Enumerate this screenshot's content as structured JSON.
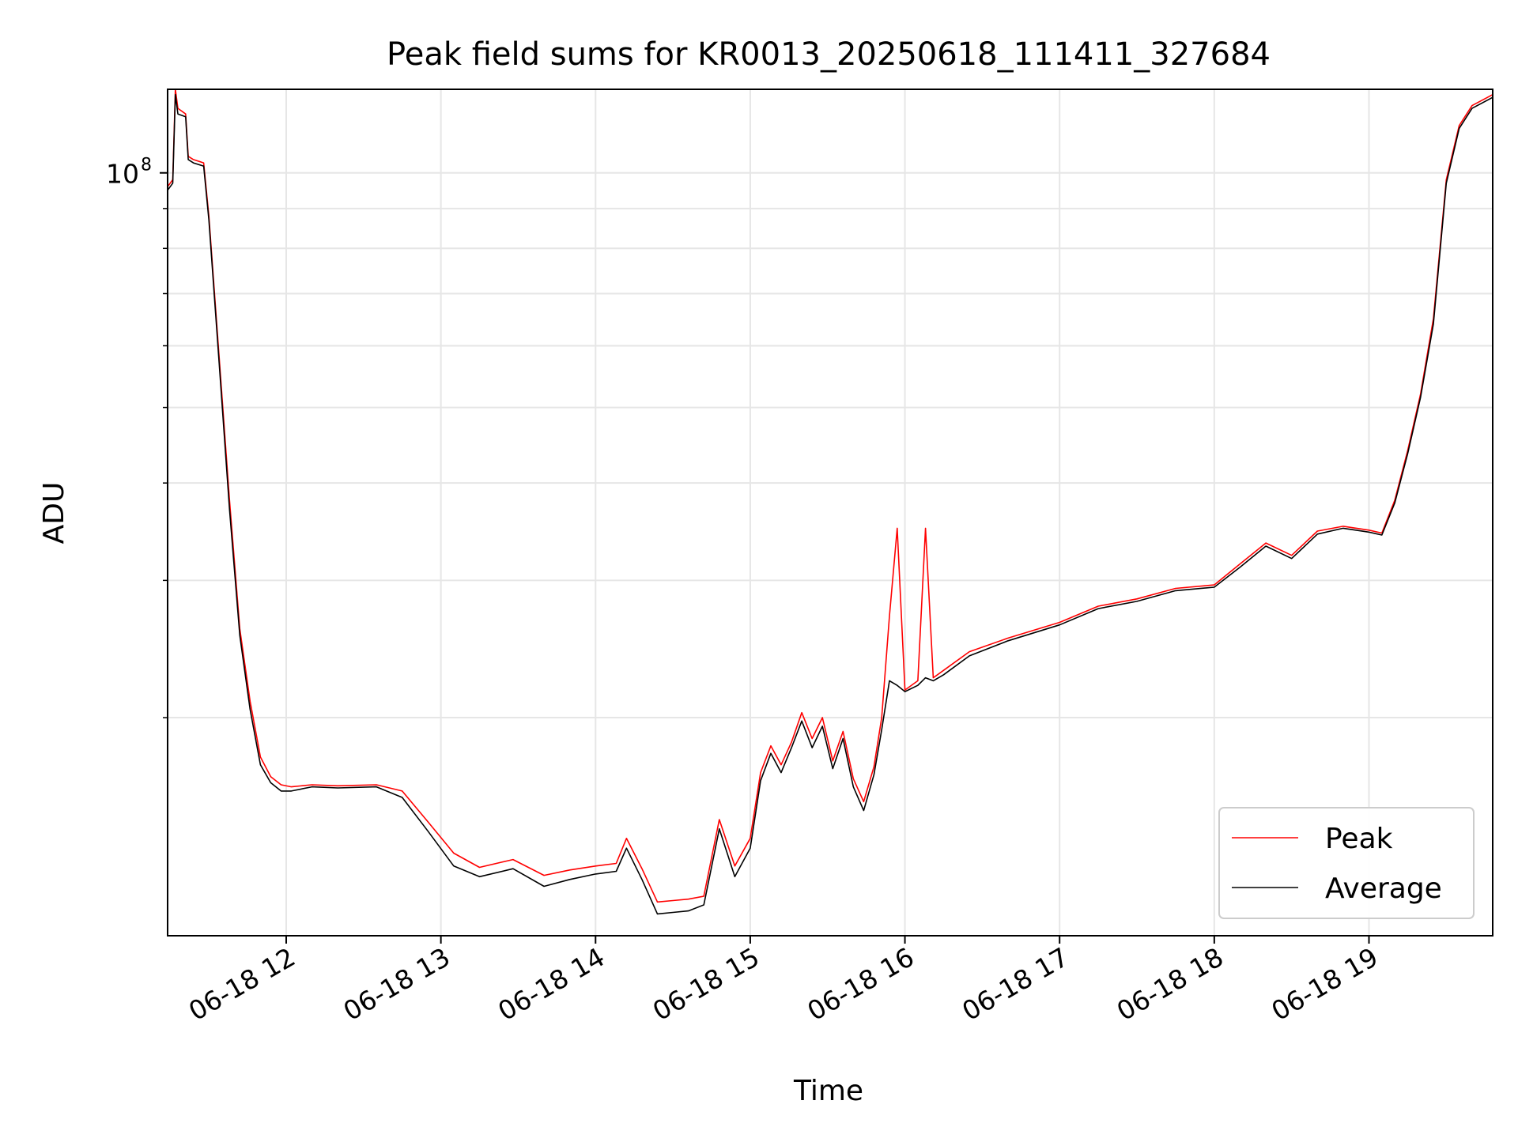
{
  "chart_data": {
    "type": "line",
    "title": "Peak field sums for KR0013_20250618_111411_327684",
    "xlabel": "Time",
    "ylabel": "ADU",
    "xscale": "time",
    "yscale": "log",
    "xlim": [
      "2025-06-18 11:14",
      "2025-06-18 19:48"
    ],
    "ylim": [
      10500000,
      128000000
    ],
    "xticks": [
      {
        "value": "2025-06-18 12:00",
        "label": "06-18 12"
      },
      {
        "value": "2025-06-18 13:00",
        "label": "06-18 13"
      },
      {
        "value": "2025-06-18 14:00",
        "label": "06-18 14"
      },
      {
        "value": "2025-06-18 15:00",
        "label": "06-18 15"
      },
      {
        "value": "2025-06-18 16:00",
        "label": "06-18 16"
      },
      {
        "value": "2025-06-18 17:00",
        "label": "06-18 17"
      },
      {
        "value": "2025-06-18 18:00",
        "label": "06-18 18"
      },
      {
        "value": "2025-06-18 19:00",
        "label": "06-18 19"
      }
    ],
    "yticks_major": [
      {
        "value": 100000000,
        "label_base": "10",
        "label_exp": "8"
      }
    ],
    "yticks_minor": [
      20000000,
      30000000,
      40000000,
      50000000,
      60000000,
      70000000,
      80000000,
      90000000
    ],
    "grid": true,
    "legend": {
      "position": "lower-right"
    },
    "series": [
      {
        "name": "Peak",
        "color": "#ff0000",
        "x": [
          "2025-06-18 11:14",
          "2025-06-18 11:16",
          "2025-06-18 11:17",
          "2025-06-18 11:18",
          "2025-06-18 11:21",
          "2025-06-18 11:22",
          "2025-06-18 11:24",
          "2025-06-18 11:28",
          "2025-06-18 11:30",
          "2025-06-18 11:34",
          "2025-06-18 11:38",
          "2025-06-18 11:42",
          "2025-06-18 11:46",
          "2025-06-18 11:50",
          "2025-06-18 11:54",
          "2025-06-18 11:58",
          "2025-06-18 12:02",
          "2025-06-18 12:10",
          "2025-06-18 12:20",
          "2025-06-18 12:35",
          "2025-06-18 12:45",
          "2025-06-18 12:55",
          "2025-06-18 13:05",
          "2025-06-18 13:15",
          "2025-06-18 13:28",
          "2025-06-18 13:40",
          "2025-06-18 13:50",
          "2025-06-18 14:00",
          "2025-06-18 14:08",
          "2025-06-18 14:12",
          "2025-06-18 14:18",
          "2025-06-18 14:24",
          "2025-06-18 14:30",
          "2025-06-18 14:36",
          "2025-06-18 14:42",
          "2025-06-18 14:48",
          "2025-06-18 14:54",
          "2025-06-18 15:00",
          "2025-06-18 15:04",
          "2025-06-18 15:08",
          "2025-06-18 15:12",
          "2025-06-18 15:16",
          "2025-06-18 15:20",
          "2025-06-18 15:24",
          "2025-06-18 15:28",
          "2025-06-18 15:32",
          "2025-06-18 15:36",
          "2025-06-18 15:40",
          "2025-06-18 15:44",
          "2025-06-18 15:48",
          "2025-06-18 15:51",
          "2025-06-18 15:54",
          "2025-06-18 15:57",
          "2025-06-18 16:00",
          "2025-06-18 16:05",
          "2025-06-18 16:08",
          "2025-06-18 16:11",
          "2025-06-18 16:15",
          "2025-06-18 16:25",
          "2025-06-18 16:40",
          "2025-06-18 17:00",
          "2025-06-18 17:15",
          "2025-06-18 17:30",
          "2025-06-18 17:45",
          "2025-06-18 18:00",
          "2025-06-18 18:10",
          "2025-06-18 18:20",
          "2025-06-18 18:30",
          "2025-06-18 18:40",
          "2025-06-18 18:50",
          "2025-06-18 19:00",
          "2025-06-18 19:05",
          "2025-06-18 19:10",
          "2025-06-18 19:15",
          "2025-06-18 19:20",
          "2025-06-18 19:25",
          "2025-06-18 19:30",
          "2025-06-18 19:35",
          "2025-06-18 19:40",
          "2025-06-18 19:48"
        ],
        "values": [
          96000000,
          98000000,
          128000000,
          121000000,
          119000000,
          105000000,
          104000000,
          103000000,
          88000000,
          58000000,
          38000000,
          26000000,
          21000000,
          17800000,
          16800000,
          16400000,
          16300000,
          16400000,
          16350000,
          16400000,
          16100000,
          14700000,
          13400000,
          12850000,
          13150000,
          12550000,
          12750000,
          12900000,
          13000000,
          14000000,
          12800000,
          11600000,
          11650000,
          11700000,
          11800000,
          14800000,
          12900000,
          14000000,
          17000000,
          18400000,
          17400000,
          18600000,
          20300000,
          18800000,
          20000000,
          17600000,
          19200000,
          16700000,
          15600000,
          17300000,
          20000000,
          27000000,
          35000000,
          21700000,
          22300000,
          35000000,
          22500000,
          23000000,
          24300000,
          25300000,
          26500000,
          27800000,
          28400000,
          29300000,
          29600000,
          31500000,
          33500000,
          32300000,
          34700000,
          35200000,
          34800000,
          34500000,
          38000000,
          44000000,
          52000000,
          65000000,
          98000000,
          115000000,
          122000000,
          126000000
        ]
      },
      {
        "name": "Average",
        "color": "#000000",
        "x": [
          "2025-06-18 11:14",
          "2025-06-18 11:16",
          "2025-06-18 11:17",
          "2025-06-18 11:18",
          "2025-06-18 11:21",
          "2025-06-18 11:22",
          "2025-06-18 11:24",
          "2025-06-18 11:28",
          "2025-06-18 11:30",
          "2025-06-18 11:34",
          "2025-06-18 11:38",
          "2025-06-18 11:42",
          "2025-06-18 11:46",
          "2025-06-18 11:50",
          "2025-06-18 11:54",
          "2025-06-18 11:58",
          "2025-06-18 12:02",
          "2025-06-18 12:10",
          "2025-06-18 12:20",
          "2025-06-18 12:35",
          "2025-06-18 12:45",
          "2025-06-18 12:55",
          "2025-06-18 13:05",
          "2025-06-18 13:15",
          "2025-06-18 13:28",
          "2025-06-18 13:40",
          "2025-06-18 13:50",
          "2025-06-18 14:00",
          "2025-06-18 14:08",
          "2025-06-18 14:12",
          "2025-06-18 14:18",
          "2025-06-18 14:24",
          "2025-06-18 14:30",
          "2025-06-18 14:36",
          "2025-06-18 14:42",
          "2025-06-18 14:48",
          "2025-06-18 14:54",
          "2025-06-18 15:00",
          "2025-06-18 15:04",
          "2025-06-18 15:08",
          "2025-06-18 15:12",
          "2025-06-18 15:16",
          "2025-06-18 15:20",
          "2025-06-18 15:24",
          "2025-06-18 15:28",
          "2025-06-18 15:32",
          "2025-06-18 15:36",
          "2025-06-18 15:40",
          "2025-06-18 15:44",
          "2025-06-18 15:48",
          "2025-06-18 15:51",
          "2025-06-18 15:54",
          "2025-06-18 15:57",
          "2025-06-18 16:00",
          "2025-06-18 16:05",
          "2025-06-18 16:08",
          "2025-06-18 16:11",
          "2025-06-18 16:15",
          "2025-06-18 16:25",
          "2025-06-18 16:40",
          "2025-06-18 17:00",
          "2025-06-18 17:15",
          "2025-06-18 17:30",
          "2025-06-18 17:45",
          "2025-06-18 18:00",
          "2025-06-18 18:10",
          "2025-06-18 18:20",
          "2025-06-18 18:30",
          "2025-06-18 18:40",
          "2025-06-18 18:50",
          "2025-06-18 19:00",
          "2025-06-18 19:05",
          "2025-06-18 19:10",
          "2025-06-18 19:15",
          "2025-06-18 19:20",
          "2025-06-18 19:25",
          "2025-06-18 19:30",
          "2025-06-18 19:35",
          "2025-06-18 19:40",
          "2025-06-18 19:48"
        ],
        "values": [
          95000000,
          97000000,
          126000000,
          119000000,
          118000000,
          104000000,
          103000000,
          102000000,
          87000000,
          57000000,
          37000000,
          25500000,
          20500000,
          17400000,
          16500000,
          16100000,
          16100000,
          16300000,
          16250000,
          16300000,
          15800000,
          14300000,
          12900000,
          12500000,
          12800000,
          12150000,
          12400000,
          12600000,
          12700000,
          13600000,
          12400000,
          11200000,
          11250000,
          11300000,
          11500000,
          14400000,
          12500000,
          13600000,
          16600000,
          18000000,
          17000000,
          18300000,
          19800000,
          18300000,
          19500000,
          17200000,
          18800000,
          16300000,
          15200000,
          16900000,
          19300000,
          22300000,
          22000000,
          21600000,
          22000000,
          22500000,
          22300000,
          22700000,
          24000000,
          25100000,
          26300000,
          27600000,
          28200000,
          29100000,
          29400000,
          31200000,
          33200000,
          32000000,
          34400000,
          35000000,
          34600000,
          34300000,
          37700000,
          43600000,
          51500000,
          64000000,
          97000000,
          114000000,
          121000000,
          125000000
        ]
      }
    ]
  }
}
